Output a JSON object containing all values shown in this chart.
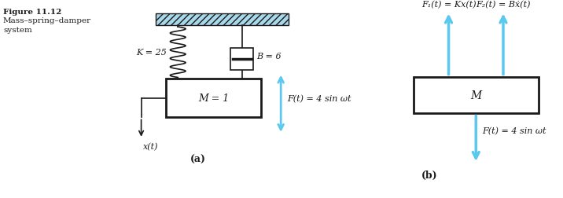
{
  "fig_title": "Figure 11.12",
  "fig_subtitle1": "Mass–spring–damper",
  "fig_subtitle2": "system",
  "label_a": "(a)",
  "label_b": "(b)",
  "K_label": "K = 25",
  "B_label": "B = 6",
  "M_label_a": "M = 1",
  "M_label_b": "M",
  "xt_label": "x(t)",
  "Ft_label": "F(t) = 4 sin ωt",
  "F1_label": "F₁(t) = Kx(t)",
  "F2_label": "F₂(t) = Bẋ(t)",
  "Ft_label_b": "F(t) = 4 sin ωt",
  "arrow_color": "#5bc8f0",
  "line_color": "#1a1a1a",
  "bg_color": "#ffffff",
  "ceil_color": "#a8d8ea",
  "ceil_edge": "#1a1a1a"
}
